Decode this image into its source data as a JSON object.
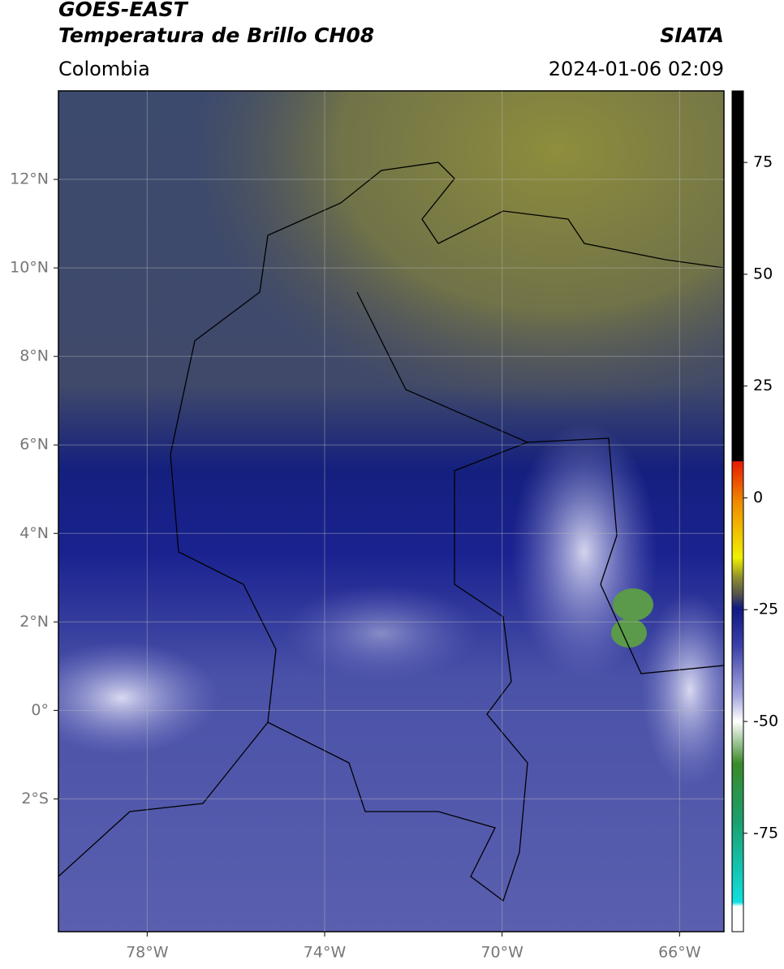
{
  "header": {
    "title": "GOES-EAST",
    "subtitle": "Temperatura de Brillo CH08",
    "source": "SIATA",
    "region": "Colombia",
    "datetime": "2024-01-06 02:09"
  },
  "map": {
    "xlim": [
      -80,
      -65
    ],
    "ylim": [
      -5,
      14
    ],
    "xticks": [
      {
        "value": -78,
        "label": "78°W"
      },
      {
        "value": -74,
        "label": "74°W"
      },
      {
        "value": -70,
        "label": "70°W"
      },
      {
        "value": -66,
        "label": "66°W"
      }
    ],
    "yticks": [
      {
        "value": 12,
        "label": "12°N"
      },
      {
        "value": 10,
        "label": "10°N"
      },
      {
        "value": 8,
        "label": "8°N"
      },
      {
        "value": 6,
        "label": "6°N"
      },
      {
        "value": 4,
        "label": "4°N"
      },
      {
        "value": 2,
        "label": "2°N"
      },
      {
        "value": 0,
        "label": "0°"
      },
      {
        "value": -2,
        "label": "2°S"
      }
    ],
    "grid": true
  },
  "colorbar": {
    "lim": [
      -97,
      91
    ],
    "ticks": [
      75,
      50,
      25,
      0,
      -25,
      -50,
      -75
    ]
  }
}
